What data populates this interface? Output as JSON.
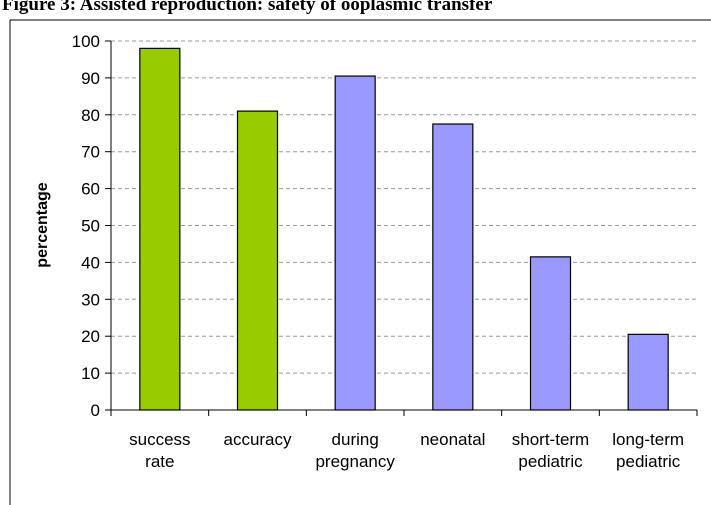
{
  "caption": "Figure 3: Assisted reproduction: safety of ooplasmic transfer",
  "chart_data": {
    "type": "bar",
    "categories": [
      [
        "success",
        "rate"
      ],
      [
        "accuracy"
      ],
      [
        "during",
        "pregnancy"
      ],
      [
        "neonatal"
      ],
      [
        "short-term",
        "pediatric"
      ],
      [
        "long-term",
        "pediatric"
      ]
    ],
    "values": [
      98,
      81,
      90.5,
      77.5,
      41.5,
      20.5
    ],
    "colors": [
      "#99cc00",
      "#99cc00",
      "#9999ff",
      "#9999ff",
      "#9999ff",
      "#9999ff"
    ],
    "title": "",
    "xlabel": "",
    "ylabel": "percentage",
    "ylim": [
      0,
      100
    ],
    "yticks": [
      0,
      10,
      20,
      30,
      40,
      50,
      60,
      70,
      80,
      90,
      100
    ],
    "grid": true,
    "legend": "none"
  }
}
